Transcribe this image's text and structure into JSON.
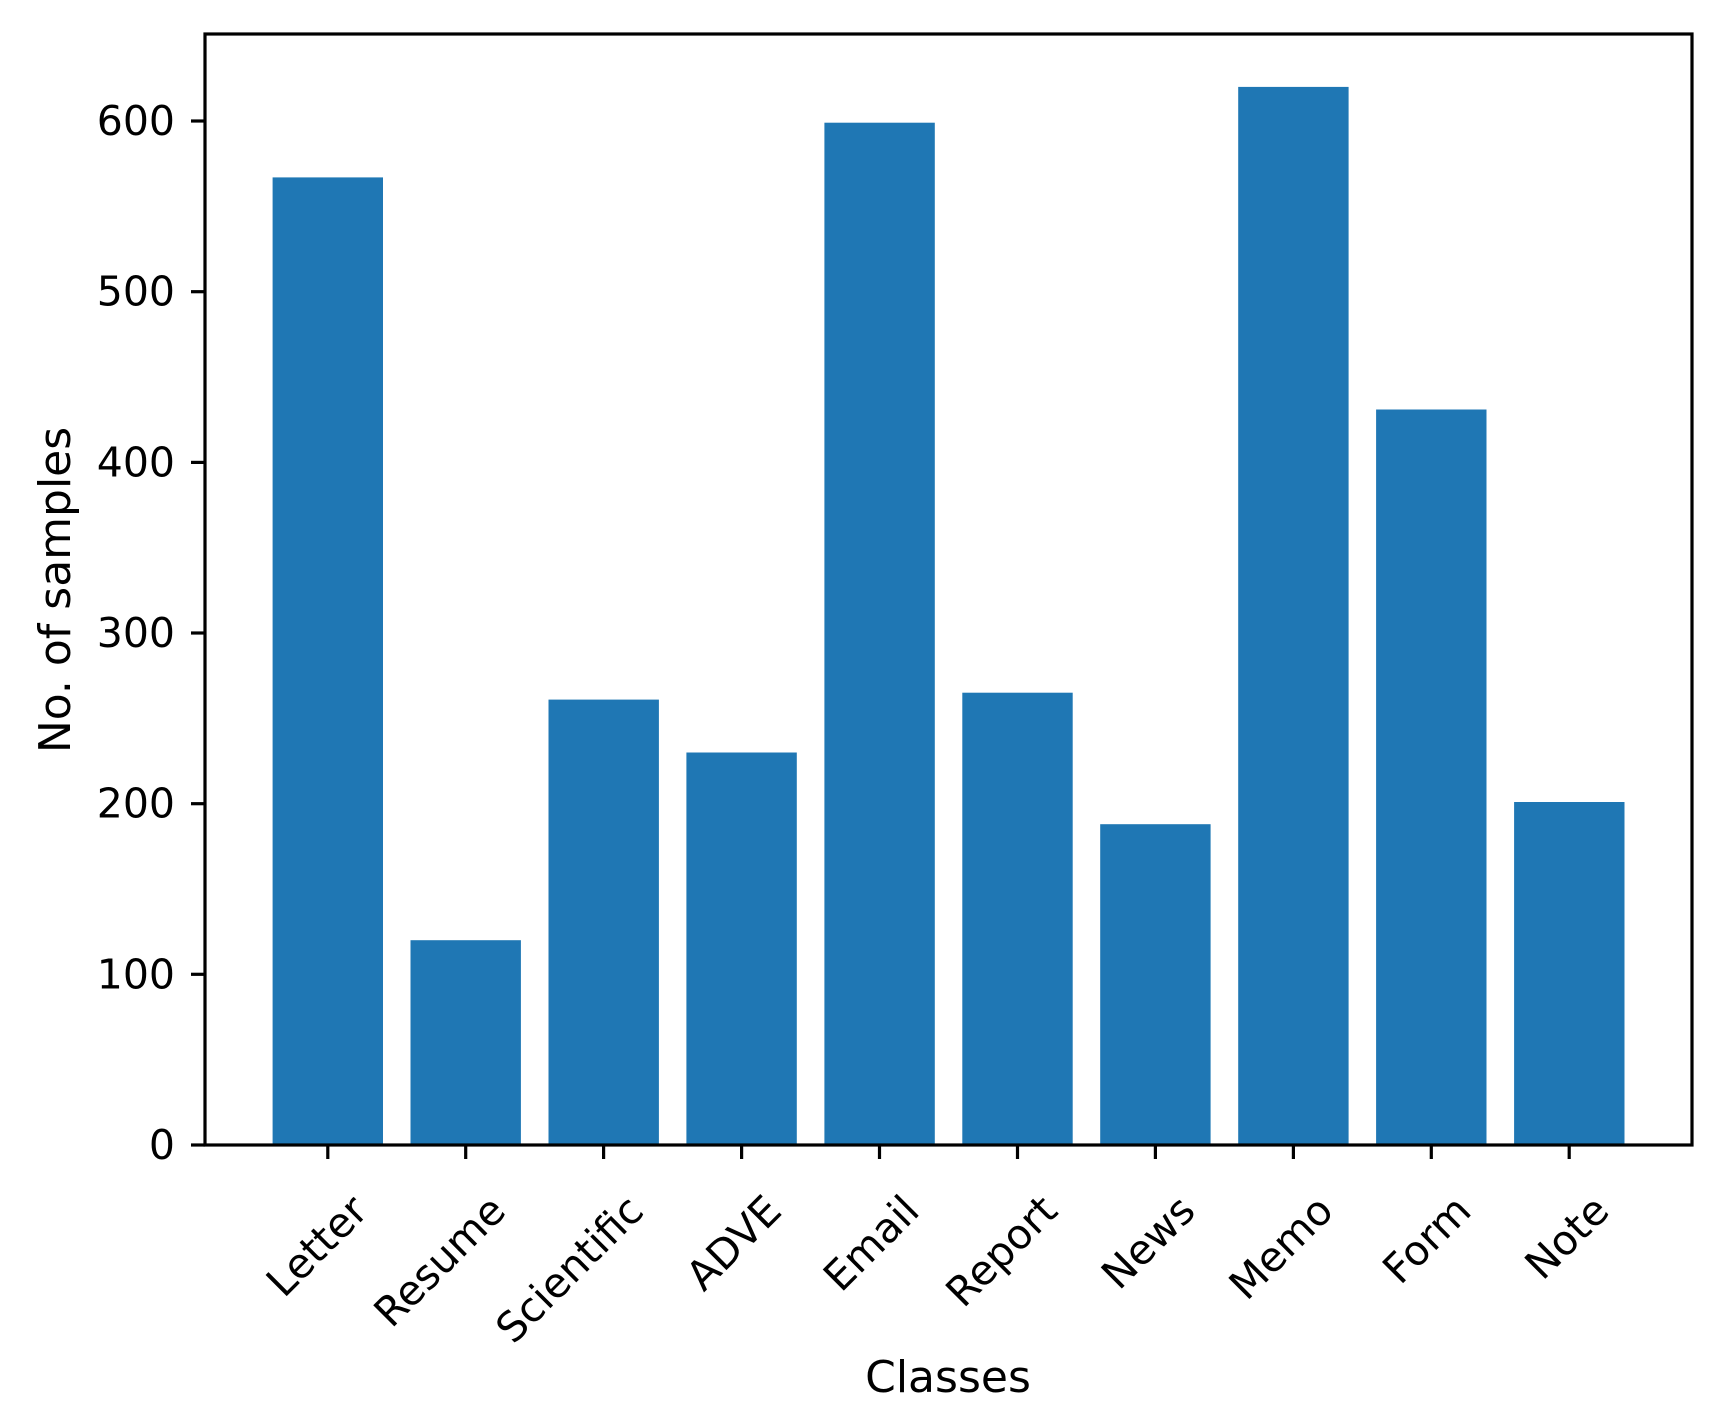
{
  "chart_data": {
    "type": "bar",
    "title": "",
    "xlabel": "Classes",
    "ylabel": "No. of samples",
    "categories": [
      "Letter",
      "Resume",
      "Scientific",
      "ADVE",
      "Email",
      "Report",
      "News",
      "Memo",
      "Form",
      "Note"
    ],
    "values": [
      567,
      120,
      261,
      230,
      599,
      265,
      188,
      620,
      431,
      201
    ],
    "bar_color": "#1f77b4",
    "axis_color": "#000000",
    "text_color": "#000000",
    "background_color": "#ffffff",
    "ylim": [
      0,
      651
    ],
    "yticks": [
      0,
      100,
      200,
      300,
      400,
      500,
      600
    ],
    "bar_width_fraction": 0.8,
    "xtick_rotation_deg": 45,
    "grid": false,
    "legend": null
  }
}
